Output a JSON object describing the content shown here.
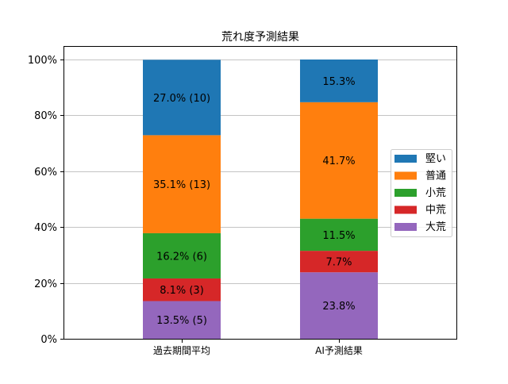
{
  "chart_data": {
    "type": "bar",
    "stacked": true,
    "title": "荒れ度予測結果",
    "xlabel": "",
    "ylabel": "",
    "categories": [
      "過去期間平均",
      "AI予測結果"
    ],
    "ylim": [
      0,
      100
    ],
    "yticks": [
      "0%",
      "20%",
      "40%",
      "60%",
      "80%",
      "100%"
    ],
    "grid": "horizontal",
    "legend_position": "right",
    "series": [
      {
        "name": "大荒",
        "color": "#9467bd",
        "values": [
          13.5,
          23.8
        ],
        "labels": [
          "13.5% (5)",
          "23.8%"
        ]
      },
      {
        "name": "中荒",
        "color": "#d62728",
        "values": [
          8.1,
          7.7
        ],
        "labels": [
          "8.1% (3)",
          "7.7%"
        ]
      },
      {
        "name": "小荒",
        "color": "#2ca02c",
        "values": [
          16.2,
          11.5
        ],
        "labels": [
          "16.2% (6)",
          "11.5%"
        ]
      },
      {
        "name": "普通",
        "color": "#ff7f0e",
        "values": [
          35.1,
          41.7
        ],
        "labels": [
          "35.1% (13)",
          "41.7%"
        ]
      },
      {
        "name": "堅い",
        "color": "#1f77b4",
        "values": [
          27.0,
          15.3
        ],
        "labels": [
          "27.0% (10)",
          "15.3%"
        ]
      }
    ],
    "legend_order": [
      "堅い",
      "普通",
      "小荒",
      "中荒",
      "大荒"
    ]
  }
}
